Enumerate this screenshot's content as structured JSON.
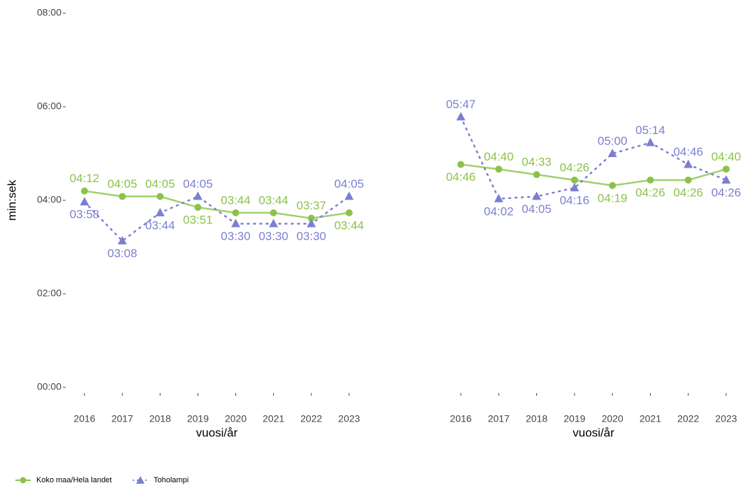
{
  "chart_data": {
    "type": "line",
    "ylabel": "min:sek",
    "xlabel": "vuosi/år",
    "categories": [
      "2016",
      "2017",
      "2018",
      "2019",
      "2020",
      "2021",
      "2022",
      "2023"
    ],
    "ylim": [
      0,
      480
    ],
    "yticks": [
      {
        "value": 0,
        "label": "00:00"
      },
      {
        "value": 120,
        "label": "02:00"
      },
      {
        "value": 240,
        "label": "04:00"
      },
      {
        "value": 360,
        "label": "06:00"
      },
      {
        "value": 480,
        "label": "08:00"
      }
    ],
    "grid": false,
    "legend": "bottom-left",
    "series": [
      {
        "name": "Koko maa/Hela landet",
        "color": "#8bc34a",
        "marker": "circle",
        "line": "solid",
        "values": [
          [
            252,
            245,
            245,
            231,
            224,
            224,
            217,
            224
          ],
          [
            286,
            280,
            273,
            266,
            259,
            266,
            266,
            280
          ]
        ],
        "value_labels": [
          [
            "04:12",
            "04:05",
            "04:05",
            "03:51",
            "03:44",
            "03:44",
            "03:37",
            "03:44"
          ],
          [
            "04:46",
            "04:40",
            "04:33",
            "04:26",
            "04:19",
            "04:26",
            "04:26",
            "04:40"
          ]
        ]
      },
      {
        "name": "Toholampi",
        "color": "#7b7fd1",
        "marker": "triangle",
        "line": "dotted",
        "values": [
          [
            238,
            188,
            224,
            245,
            210,
            210,
            210,
            245
          ],
          [
            347,
            242,
            245,
            256,
            300,
            314,
            286,
            266
          ]
        ],
        "value_labels": [
          [
            "03:58",
            "03:08",
            "03:44",
            "04:05",
            "03:30",
            "03:30",
            "03:30",
            "04:05"
          ],
          [
            "05:47",
            "04:02",
            "04:05",
            "04:16",
            "05:00",
            "05:14",
            "04:46",
            "04:26"
          ]
        ]
      }
    ]
  }
}
